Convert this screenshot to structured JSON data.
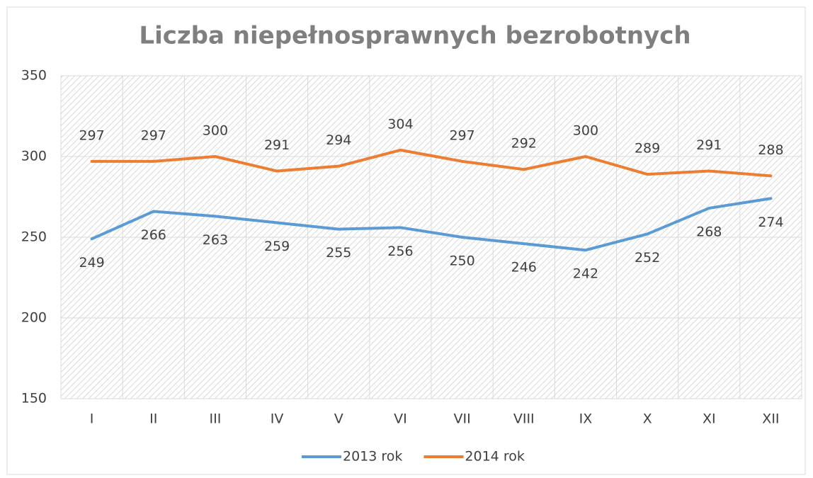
{
  "chart_data": {
    "type": "line",
    "title": "Liczba niepełnosprawnych bezrobotnych",
    "categories": [
      "I",
      "II",
      "III",
      "IV",
      "V",
      "VI",
      "VII",
      "VIII",
      "IX",
      "X",
      "XI",
      "XII"
    ],
    "series": [
      {
        "name": "2013 rok",
        "color": "#5b9bd5",
        "values": [
          249,
          266,
          263,
          259,
          255,
          256,
          250,
          246,
          242,
          252,
          268,
          274
        ]
      },
      {
        "name": "2014 rok",
        "color": "#ed7d31",
        "values": [
          297,
          297,
          300,
          291,
          294,
          304,
          297,
          292,
          300,
          289,
          291,
          288
        ]
      }
    ],
    "ylim": [
      150,
      350
    ],
    "yticks": [
      150,
      200,
      250,
      300,
      350
    ],
    "grid": true,
    "legend": "bottom"
  }
}
